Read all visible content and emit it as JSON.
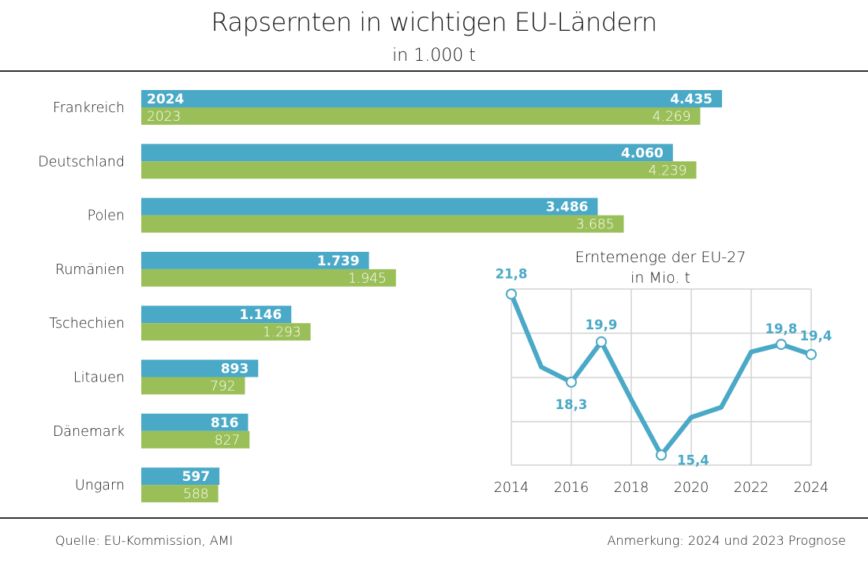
{
  "header": {
    "title": "Rapsernten in wichtigen EU-Ländern",
    "subtitle": "in 1.000 t"
  },
  "footer": {
    "source": "Quelle:  EU-Kommission, AMI",
    "note": "Anmerkung: 2024 und 2023 Prognose"
  },
  "colors": {
    "series_2024": "#4aa9c7",
    "series_2023": "#9bbf58",
    "line": "#4aa9c7",
    "grid": "#d4d4d4",
    "rule": "#333333"
  },
  "chart_data": [
    {
      "type": "bar",
      "orientation": "horizontal",
      "title": "Rapsernten in wichtigen EU-Ländern",
      "subtitle": "in 1.000 t",
      "categories": [
        "Frankreich",
        "Deutschland",
        "Polen",
        "Rumänien",
        "Tschechien",
        "Litauen",
        "Dänemark",
        "Ungarn"
      ],
      "series": [
        {
          "name": "2024",
          "values": [
            4435,
            4060,
            3486,
            1739,
            1146,
            893,
            816,
            597
          ],
          "labels": [
            "4.435",
            "4.060",
            "3.486",
            "1.739",
            "1.146",
            "893",
            "816",
            "597"
          ]
        },
        {
          "name": "2023",
          "values": [
            4269,
            4239,
            3685,
            1945,
            1293,
            792,
            827,
            588
          ],
          "labels": [
            "4.269",
            "4.239",
            "3.685",
            "1.945",
            "1.293",
            "792",
            "827",
            "588"
          ]
        }
      ],
      "xlim": [
        0,
        4435
      ],
      "grid": false
    },
    {
      "type": "line",
      "title": "Erntemenge der EU-27",
      "subtitle": "in Mio. t",
      "x": [
        2014,
        2015,
        2016,
        2017,
        2018,
        2019,
        2020,
        2021,
        2022,
        2023,
        2024
      ],
      "series": [
        {
          "values": [
            21.8,
            18.9,
            18.3,
            19.9,
            17.6,
            15.4,
            16.9,
            17.3,
            19.5,
            19.8,
            19.4
          ]
        }
      ],
      "labeled_points": [
        {
          "x": 2014,
          "label": "21,8"
        },
        {
          "x": 2016,
          "label": "18,3"
        },
        {
          "x": 2017,
          "label": "19,9"
        },
        {
          "x": 2019,
          "label": "15,4"
        },
        {
          "x": 2023,
          "label": "19,8"
        },
        {
          "x": 2024,
          "label": "19,4"
        }
      ],
      "xticks": [
        "2014",
        "2016",
        "2018",
        "2020",
        "2022",
        "2024"
      ],
      "ylim": [
        15,
        22
      ],
      "grid": true
    }
  ]
}
